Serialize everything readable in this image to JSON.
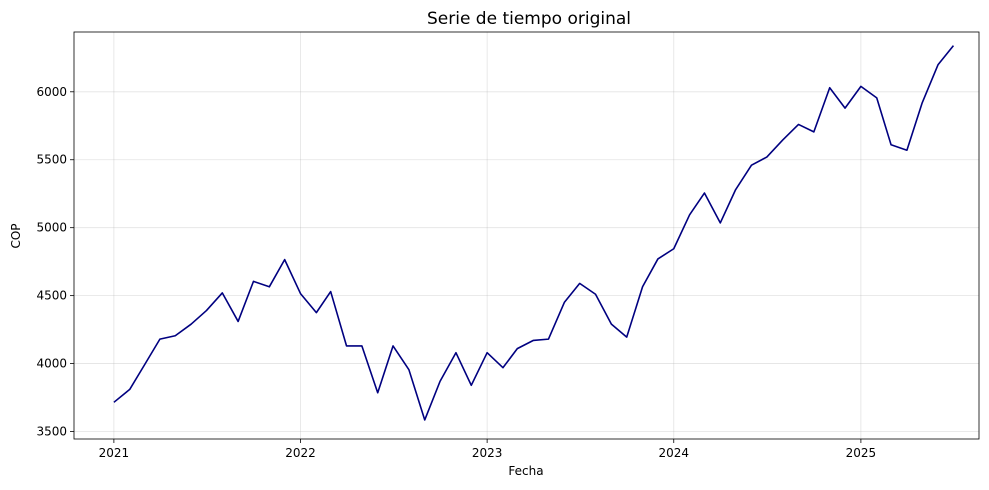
{
  "chart_data": {
    "type": "line",
    "title": "Serie de tiempo original",
    "xlabel": "Fecha",
    "ylabel": "COP",
    "x_ticks": [
      "2021",
      "2022",
      "2023",
      "2024",
      "2025"
    ],
    "y_ticks": [
      3500,
      4000,
      4500,
      5000,
      5500,
      6000
    ],
    "xlim": [
      "2020-10-15",
      "2025-08-20"
    ],
    "ylim": [
      3445,
      6440
    ],
    "grid": true,
    "series": [
      {
        "color": "#000080",
        "x": [
          "2021-01",
          "2021-02",
          "2021-03",
          "2021-04",
          "2021-05",
          "2021-06",
          "2021-07",
          "2021-08",
          "2021-09",
          "2021-10",
          "2021-11",
          "2021-12",
          "2022-01",
          "2022-02",
          "2022-03",
          "2022-04",
          "2022-05",
          "2022-06",
          "2022-07",
          "2022-08",
          "2022-09",
          "2022-10",
          "2022-11",
          "2022-12",
          "2023-01",
          "2023-02",
          "2023-03",
          "2023-04",
          "2023-05",
          "2023-06",
          "2023-07",
          "2023-08",
          "2023-09",
          "2023-10",
          "2023-11",
          "2023-12",
          "2024-01",
          "2024-02",
          "2024-03",
          "2024-04",
          "2024-05",
          "2024-06",
          "2024-07",
          "2024-08",
          "2024-09",
          "2024-10",
          "2024-11",
          "2024-12",
          "2025-01",
          "2025-02",
          "2025-03",
          "2025-04",
          "2025-05",
          "2025-06",
          "2025-07"
        ],
        "values": [
          3715,
          3810,
          3985,
          4180,
          4205,
          4290,
          4390,
          4520,
          4310,
          4605,
          4565,
          4765,
          4515,
          4375,
          4530,
          4130,
          4130,
          3785,
          4130,
          3955,
          3585,
          3870,
          4080,
          3840,
          4080,
          3970,
          4110,
          4170,
          4180,
          4450,
          4590,
          4510,
          4290,
          4195,
          4565,
          4770,
          4845,
          5095,
          5255,
          5035,
          5280,
          5460,
          5520,
          5645,
          5760,
          5705,
          6030,
          5880,
          6040,
          5955,
          5610,
          5570,
          5920,
          6200,
          6340
        ]
      }
    ]
  }
}
